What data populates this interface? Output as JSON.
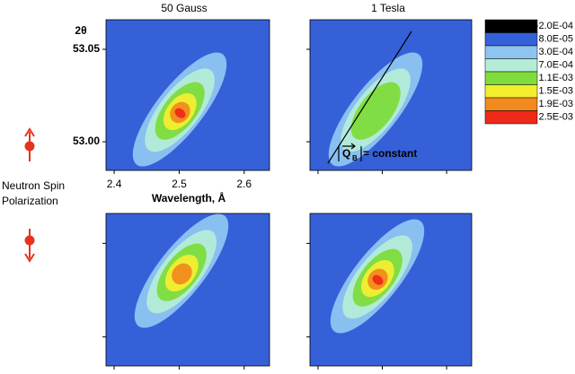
{
  "chart_data": {
    "type": "heatmap",
    "panel_titles": [
      "50 Gauss",
      "1 Tesla"
    ],
    "ylabel": "2θ",
    "xlabel": "Wavelength, Å",
    "side_label": [
      "Neutron Spin",
      "Polarization"
    ],
    "xlim": [
      2.3875,
      2.639
    ],
    "xticks": [
      2.4,
      2.5,
      2.6
    ],
    "ylim": [
      52.9845,
      53.066
    ],
    "yticks": [
      {
        "value": 53.05,
        "label": "53.05"
      },
      {
        "value": 53.0,
        "label": "53.00"
      }
    ],
    "colorbar": {
      "levels": [
        -0.0002,
        8e-05,
        0.0003,
        0.0007,
        0.0011,
        0.0015,
        0.0019,
        0.0025
      ],
      "labels": [
        "-2.0E-04",
        "8.0E-05",
        "3.0E-04",
        "7.0E-04",
        "1.1E-03",
        "1.5E-03",
        "1.9E-03",
        "2.5E-03"
      ],
      "colors": [
        "#000000",
        "#3560d8",
        "#8ec4f2",
        "#b4ecd8",
        "#7edc3c",
        "#f2ee30",
        "#f28a1e",
        "#ee2a1a"
      ]
    },
    "panels": [
      {
        "peak": 0.0025
      },
      {
        "peak": 0.0011
      },
      {
        "peak": 0.0019
      },
      {
        "peak": 0.0025
      }
    ],
    "annotation": {
      "symbol": "Q",
      "subscript": "B",
      "text": "= constant"
    }
  }
}
